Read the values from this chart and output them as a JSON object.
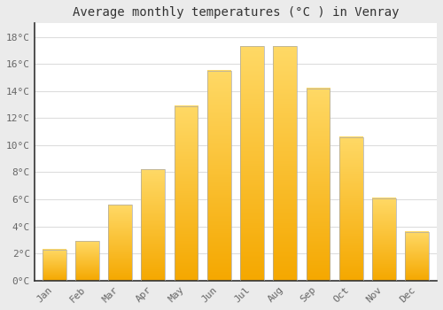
{
  "title": "Average monthly temperatures (°C ) in Venray",
  "months": [
    "Jan",
    "Feb",
    "Mar",
    "Apr",
    "May",
    "Jun",
    "Jul",
    "Aug",
    "Sep",
    "Oct",
    "Nov",
    "Dec"
  ],
  "values": [
    2.3,
    2.9,
    5.6,
    8.2,
    12.9,
    15.5,
    17.3,
    17.3,
    14.2,
    10.6,
    6.1,
    3.6
  ],
  "bar_color_bottom": "#F5A800",
  "bar_color_top": "#FFD966",
  "bar_edge_color": "#AAAAAA",
  "ylim": [
    0,
    19
  ],
  "yticks": [
    0,
    2,
    4,
    6,
    8,
    10,
    12,
    14,
    16,
    18
  ],
  "ytick_labels": [
    "0°C",
    "2°C",
    "4°C",
    "6°C",
    "8°C",
    "10°C",
    "12°C",
    "14°C",
    "16°C",
    "18°C"
  ],
  "plot_bg_color": "#FFFFFF",
  "fig_bg_color": "#EBEBEB",
  "grid_color": "#DDDDDD",
  "title_fontsize": 10,
  "tick_fontsize": 8,
  "font_family": "monospace",
  "title_color": "#333333",
  "tick_color": "#666666",
  "spine_color": "#333333"
}
